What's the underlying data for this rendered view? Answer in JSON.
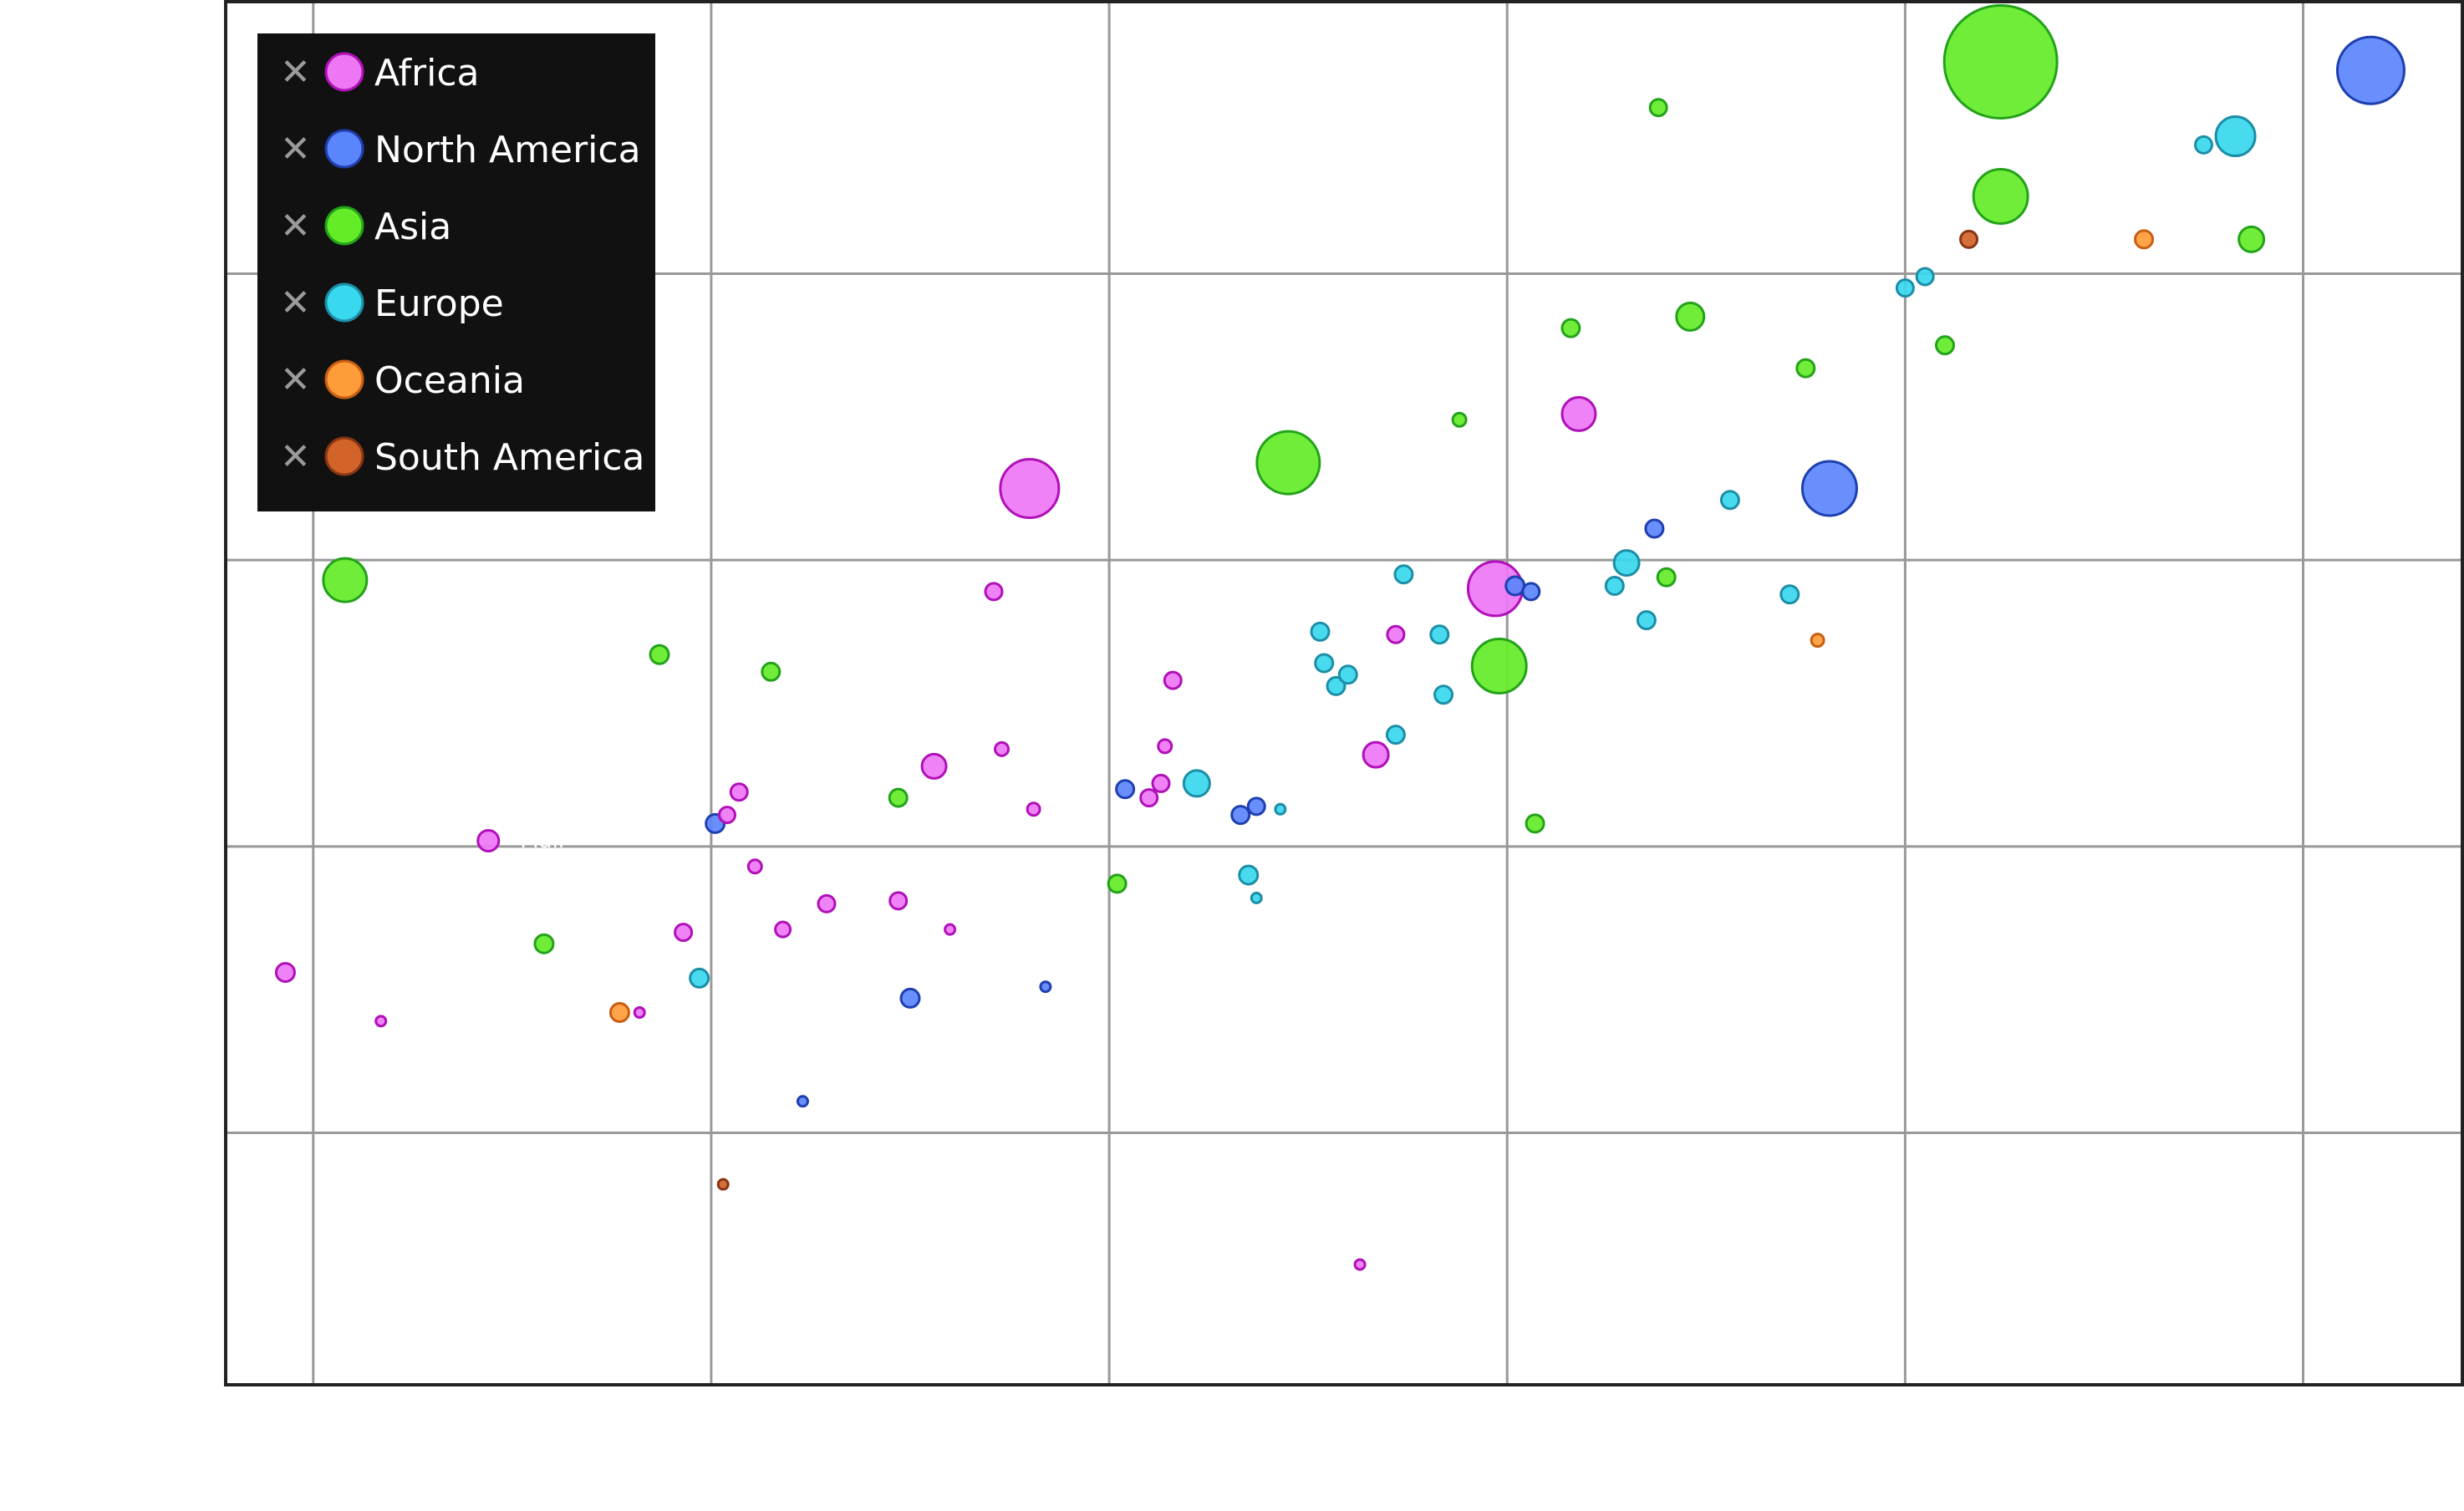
{
  "chart_data": {
    "type": "scatter",
    "title": "",
    "xlabel": "",
    "ylabel": "",
    "xlim": [
      -0.22,
      5.4
    ],
    "ylim": [
      -0.13,
      4.7
    ],
    "grid": true,
    "legend_placement": "top-left",
    "x_gridlines": [
      0,
      1,
      2,
      3,
      4,
      5
    ],
    "y_gridlines": [
      0.75,
      1.75,
      2.75,
      3.75
    ],
    "size_range": [
      10,
      135
    ],
    "colors": {
      "Africa": {
        "fill": "#ee77f5",
        "stroke": "#b010b8"
      },
      "North America": {
        "fill": "#5b86fb",
        "stroke": "#1f3fb0"
      },
      "Asia": {
        "fill": "#63ec27",
        "stroke": "#23a21a"
      },
      "Europe": {
        "fill": "#38d8ef",
        "stroke": "#1c8ea6"
      },
      "Oceania": {
        "fill": "#ff9c3a",
        "stroke": "#c85e12"
      },
      "South America": {
        "fill": "#d2642a",
        "stroke": "#8a3614"
      }
    },
    "series": [
      {
        "name": "Africa",
        "points": [
          {
            "x": -0.07,
            "y": 1.31,
            "s": 22
          },
          {
            "x": 0.17,
            "y": 1.14,
            "s": 12
          },
          {
            "x": 0.44,
            "y": 1.77,
            "s": 25
          },
          {
            "x": 0.82,
            "y": 1.17,
            "s": 12
          },
          {
            "x": 0.93,
            "y": 1.45,
            "s": 20
          },
          {
            "x": 1.04,
            "y": 1.86,
            "s": 19
          },
          {
            "x": 1.07,
            "y": 1.94,
            "s": 20
          },
          {
            "x": 1.11,
            "y": 1.68,
            "s": 16
          },
          {
            "x": 1.18,
            "y": 1.46,
            "s": 18
          },
          {
            "x": 1.29,
            "y": 1.55,
            "s": 20
          },
          {
            "x": 1.47,
            "y": 1.56,
            "s": 20
          },
          {
            "x": 1.6,
            "y": 1.46,
            "s": 12
          },
          {
            "x": 1.56,
            "y": 2.03,
            "s": 29
          },
          {
            "x": 1.71,
            "y": 2.64,
            "s": 20
          },
          {
            "x": 1.73,
            "y": 2.09,
            "s": 16
          },
          {
            "x": 1.81,
            "y": 1.88,
            "s": 15
          },
          {
            "x": 1.8,
            "y": 3.0,
            "s": 70
          },
          {
            "x": 2.1,
            "y": 1.92,
            "s": 20
          },
          {
            "x": 2.14,
            "y": 2.1,
            "s": 16
          },
          {
            "x": 2.16,
            "y": 2.33,
            "s": 20
          },
          {
            "x": 2.13,
            "y": 1.97,
            "s": 20
          },
          {
            "x": 2.63,
            "y": 0.29,
            "s": 12
          },
          {
            "x": 2.67,
            "y": 2.07,
            "s": 30
          },
          {
            "x": 2.72,
            "y": 2.49,
            "s": 20
          },
          {
            "x": 2.97,
            "y": 2.65,
            "s": 65
          },
          {
            "x": 3.18,
            "y": 3.26,
            "s": 40
          }
        ]
      },
      {
        "name": "North America",
        "points": [
          {
            "x": 1.01,
            "y": 1.83,
            "s": 22
          },
          {
            "x": 1.23,
            "y": 0.86,
            "s": 12
          },
          {
            "x": 1.5,
            "y": 1.22,
            "s": 22
          },
          {
            "x": 1.84,
            "y": 1.26,
            "s": 12
          },
          {
            "x": 2.04,
            "y": 1.95,
            "s": 21
          },
          {
            "x": 2.33,
            "y": 1.86,
            "s": 21
          },
          {
            "x": 2.37,
            "y": 1.89,
            "s": 20
          },
          {
            "x": 3.02,
            "y": 2.66,
            "s": 22
          },
          {
            "x": 3.06,
            "y": 2.64,
            "s": 20
          },
          {
            "x": 3.37,
            "y": 2.86,
            "s": 21
          },
          {
            "x": 3.81,
            "y": 3.0,
            "s": 65
          },
          {
            "x": 5.17,
            "y": 4.46,
            "s": 80
          }
        ]
      },
      {
        "name": "Asia",
        "points": [
          {
            "x": 0.08,
            "y": 2.68,
            "s": 52
          },
          {
            "x": 0.58,
            "y": 1.41,
            "s": 22
          },
          {
            "x": 0.87,
            "y": 2.42,
            "s": 22
          },
          {
            "x": 1.15,
            "y": 2.36,
            "s": 21
          },
          {
            "x": 1.47,
            "y": 1.92,
            "s": 21
          },
          {
            "x": 2.02,
            "y": 1.62,
            "s": 21
          },
          {
            "x": 2.45,
            "y": 3.09,
            "s": 75
          },
          {
            "x": 2.88,
            "y": 3.24,
            "s": 16
          },
          {
            "x": 2.98,
            "y": 2.38,
            "s": 65
          },
          {
            "x": 3.07,
            "y": 1.83,
            "s": 21
          },
          {
            "x": 3.16,
            "y": 3.56,
            "s": 21
          },
          {
            "x": 3.38,
            "y": 4.33,
            "s": 20
          },
          {
            "x": 3.4,
            "y": 2.69,
            "s": 21
          },
          {
            "x": 3.46,
            "y": 3.6,
            "s": 33
          },
          {
            "x": 3.75,
            "y": 3.42,
            "s": 21
          },
          {
            "x": 4.1,
            "y": 3.5,
            "s": 21
          },
          {
            "x": 4.24,
            "y": 4.02,
            "s": 65
          },
          {
            "x": 4.24,
            "y": 4.49,
            "s": 135
          },
          {
            "x": 4.87,
            "y": 3.87,
            "s": 30
          }
        ]
      },
      {
        "name": "Europe",
        "points": [
          {
            "x": 0.97,
            "y": 1.29,
            "s": 22
          },
          {
            "x": 2.22,
            "y": 1.97,
            "s": 31
          },
          {
            "x": 2.35,
            "y": 1.65,
            "s": 22
          },
          {
            "x": 2.37,
            "y": 1.57,
            "s": 12
          },
          {
            "x": 2.43,
            "y": 1.88,
            "s": 12
          },
          {
            "x": 2.53,
            "y": 2.5,
            "s": 21
          },
          {
            "x": 2.54,
            "y": 2.39,
            "s": 21
          },
          {
            "x": 2.57,
            "y": 2.31,
            "s": 21
          },
          {
            "x": 2.6,
            "y": 2.35,
            "s": 21
          },
          {
            "x": 2.72,
            "y": 2.14,
            "s": 21
          },
          {
            "x": 2.74,
            "y": 2.7,
            "s": 21
          },
          {
            "x": 2.83,
            "y": 2.49,
            "s": 21
          },
          {
            "x": 2.84,
            "y": 2.28,
            "s": 21
          },
          {
            "x": 3.27,
            "y": 2.66,
            "s": 21
          },
          {
            "x": 3.3,
            "y": 2.74,
            "s": 30
          },
          {
            "x": 3.35,
            "y": 2.54,
            "s": 21
          },
          {
            "x": 3.56,
            "y": 2.96,
            "s": 21
          },
          {
            "x": 3.71,
            "y": 2.63,
            "s": 21
          },
          {
            "x": 4.0,
            "y": 3.7,
            "s": 20
          },
          {
            "x": 4.05,
            "y": 3.74,
            "s": 20
          },
          {
            "x": 4.75,
            "y": 4.2,
            "s": 20
          },
          {
            "x": 4.83,
            "y": 4.23,
            "s": 47
          }
        ]
      },
      {
        "name": "Oceania",
        "points": [
          {
            "x": 0.77,
            "y": 1.17,
            "s": 22
          },
          {
            "x": 3.78,
            "y": 2.47,
            "s": 15
          },
          {
            "x": 4.6,
            "y": 3.87,
            "s": 21
          }
        ]
      },
      {
        "name": "South America",
        "points": [
          {
            "x": 1.03,
            "y": 0.57,
            "s": 12
          },
          {
            "x": 4.16,
            "y": 3.87,
            "s": 20
          }
        ]
      }
    ],
    "legend": [
      {
        "label": "Africa"
      },
      {
        "label": "North America"
      },
      {
        "label": "Asia"
      },
      {
        "label": "Europe"
      },
      {
        "label": "Oceania"
      },
      {
        "label": "South America"
      }
    ],
    "legend_remove_glyph": "✕",
    "point_labels": [
      "Mali"
    ]
  }
}
